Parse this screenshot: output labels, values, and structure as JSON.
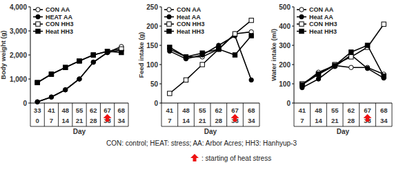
{
  "chart_data": [
    {
      "type": "line",
      "ylabel": "Body weight (g)",
      "xlabel": "Day",
      "categories": [
        "33",
        "41",
        "48",
        "55",
        "62",
        "67",
        "68"
      ],
      "secondary_categories": [
        "0",
        "7",
        "14",
        "21",
        "28",
        "33",
        "34"
      ],
      "ylim": [
        0,
        4000
      ],
      "yticks": [
        0,
        {
          "value": 1000,
          "label": "1,000"
        },
        {
          "value": 2000,
          "label": "2,000"
        },
        {
          "value": 3000,
          "label": "3,000"
        },
        {
          "value": 4000,
          "label": "4,000"
        }
      ],
      "legend": "upper left",
      "series": [
        {
          "name": "CON AA",
          "color": "#000000",
          "marker": "open-circle",
          "values": [
            50,
            250,
            550,
            1000,
            1700,
            2100,
            2350
          ]
        },
        {
          "name": "HEAT AA",
          "color": "#000000",
          "marker": "circle",
          "values": [
            50,
            250,
            550,
            1000,
            1700,
            2100,
            2200
          ]
        },
        {
          "name": "CON HH3",
          "color": "#000000",
          "marker": "open-square",
          "values": [
            850,
            1200,
            1480,
            1750,
            2000,
            2150,
            2250
          ]
        },
        {
          "name": "Heat HH3",
          "color": "#000000",
          "marker": "square",
          "values": [
            850,
            1200,
            1480,
            1750,
            2000,
            2150,
            2100
          ]
        }
      ]
    },
    {
      "type": "line",
      "ylabel": "Feed intake (g)",
      "xlabel": "Day",
      "categories": [
        "41",
        "48",
        "55",
        "62",
        "67",
        "68"
      ],
      "secondary_categories": [
        "7",
        "14",
        "21",
        "28",
        "33",
        "34"
      ],
      "ylim": [
        0,
        250
      ],
      "yticks": [
        0,
        50,
        100,
        150,
        200,
        250
      ],
      "legend": "upper left",
      "series": [
        {
          "name": "CON AA",
          "color": "#000000",
          "marker": "open-circle",
          "values": [
            140,
            120,
            120,
            140,
            180,
            185
          ]
        },
        {
          "name": "Heat AA",
          "color": "#000000",
          "marker": "circle",
          "values": [
            135,
            115,
            125,
            150,
            175,
            60
          ]
        },
        {
          "name": "CON HH3",
          "color": "#000000",
          "marker": "open-square",
          "values": [
            25,
            60,
            100,
            140,
            180,
            215
          ]
        },
        {
          "name": "Heat HH3",
          "color": "#000000",
          "marker": "square",
          "values": [
            145,
            120,
            130,
            140,
            125,
            175
          ]
        }
      ]
    },
    {
      "type": "line",
      "ylabel": "Water intake (ml)",
      "xlabel": "Day",
      "categories": [
        "41",
        "48",
        "55",
        "62",
        "67",
        "68"
      ],
      "secondary_categories": [
        "7",
        "14",
        "21",
        "28",
        "33",
        "34"
      ],
      "ylim": [
        0,
        500
      ],
      "yticks": [
        0,
        100,
        200,
        300,
        400,
        500
      ],
      "legend": "upper left",
      "series": [
        {
          "name": "CON AA",
          "color": "#000000",
          "marker": "open-circle",
          "values": [
            95,
            160,
            195,
            185,
            185,
            150
          ]
        },
        {
          "name": "Heat AA",
          "color": "#000000",
          "marker": "circle",
          "values": [
            80,
            125,
            190,
            250,
            180,
            130
          ]
        },
        {
          "name": "CON HH3",
          "color": "#000000",
          "marker": "open-square",
          "values": [
            100,
            150,
            200,
            240,
            290,
            410
          ]
        },
        {
          "name": "Heat HH3",
          "color": "#000000",
          "marker": "square",
          "values": [
            95,
            150,
            195,
            265,
            300,
            140
          ]
        }
      ]
    }
  ],
  "caption": "CON: control; HEAT: stress; AA: Arbor Acres; HH3: Hanhyup-3",
  "annotation": {
    "text": ": starting of heat stress",
    "x": "67",
    "color": "#ee1111"
  }
}
